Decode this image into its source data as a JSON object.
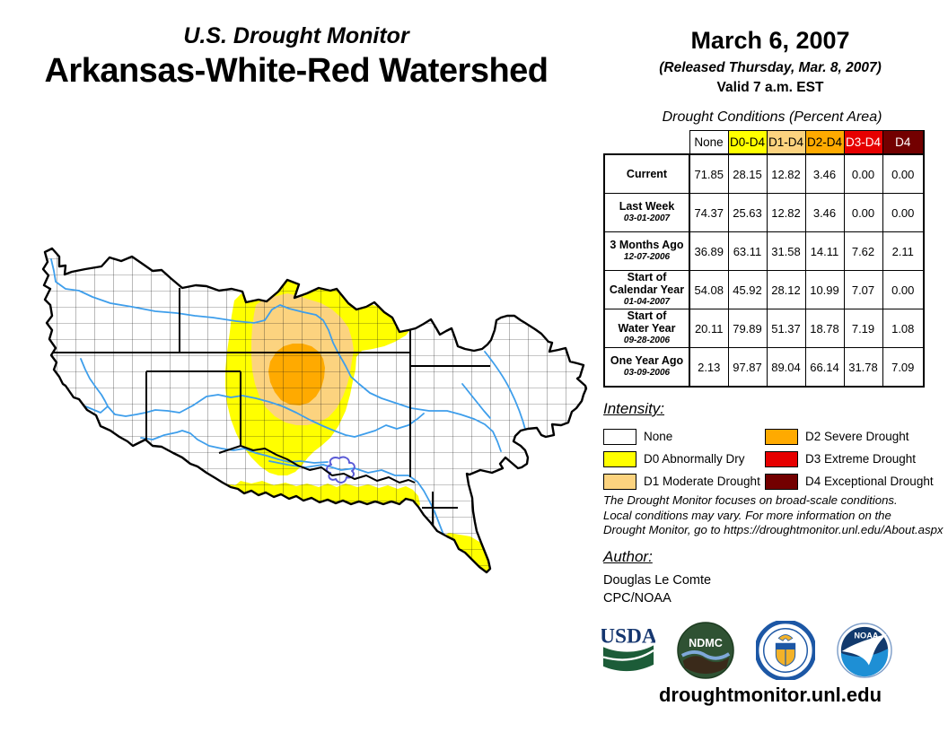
{
  "header": {
    "supertitle": "U.S. Drought Monitor",
    "title": "Arkansas-White-Red Watershed",
    "date": "March 6, 2007",
    "released": "(Released Thursday, Mar. 8, 2007)",
    "valid": "Valid 7 a.m. EST"
  },
  "table": {
    "title": "Drought Conditions (Percent Area)",
    "columns": [
      {
        "label": "None",
        "bg": "#FFFFFF",
        "fg": "#000000"
      },
      {
        "label": "D0-D4",
        "bg": "#FFFF00",
        "fg": "#000000"
      },
      {
        "label": "D1-D4",
        "bg": "#FCD37F",
        "fg": "#000000"
      },
      {
        "label": "D2-D4",
        "bg": "#FFAA00",
        "fg": "#000000"
      },
      {
        "label": "D3-D4",
        "bg": "#E60000",
        "fg": "#FFFFFF"
      },
      {
        "label": "D4",
        "bg": "#730000",
        "fg": "#FFFFFF"
      }
    ],
    "rows": [
      {
        "label": "Current",
        "sublabel": "",
        "values": [
          "71.85",
          "28.15",
          "12.82",
          "3.46",
          "0.00",
          "0.00"
        ]
      },
      {
        "label": "Last Week",
        "sublabel": "03-01-2007",
        "values": [
          "74.37",
          "25.63",
          "12.82",
          "3.46",
          "0.00",
          "0.00"
        ]
      },
      {
        "label": "3 Months Ago",
        "sublabel": "12-07-2006",
        "values": [
          "36.89",
          "63.11",
          "31.58",
          "14.11",
          "7.62",
          "2.11"
        ]
      },
      {
        "label": "Start of\nCalendar Year",
        "sublabel": "01-04-2007",
        "values": [
          "54.08",
          "45.92",
          "28.12",
          "10.99",
          "7.07",
          "0.00"
        ]
      },
      {
        "label": "Start of\nWater Year",
        "sublabel": "09-28-2006",
        "values": [
          "20.11",
          "79.89",
          "51.37",
          "18.78",
          "7.19",
          "1.08"
        ]
      },
      {
        "label": "One Year Ago",
        "sublabel": "03-09-2006",
        "values": [
          "2.13",
          "97.87",
          "89.04",
          "66.14",
          "31.78",
          "7.09"
        ]
      }
    ]
  },
  "legend": {
    "title": "Intensity:",
    "items": [
      {
        "label": "None",
        "color": "#FFFFFF"
      },
      {
        "label": "D0 Abnormally Dry",
        "color": "#FFFF00"
      },
      {
        "label": "D1 Moderate Drought",
        "color": "#FCD37F"
      },
      {
        "label": "D2 Severe Drought",
        "color": "#FFAA00"
      },
      {
        "label": "D3 Extreme Drought",
        "color": "#E60000"
      },
      {
        "label": "D4 Exceptional Drought",
        "color": "#730000"
      }
    ]
  },
  "notes": [
    "The Drought Monitor focuses on broad-scale conditions.",
    "Local conditions may vary. For more information on the",
    "Drought Monitor, go to https://droughtmonitor.unl.edu/About.aspx"
  ],
  "author": {
    "heading": "Author:",
    "name": "Douglas Le Comte",
    "org": "CPC/NOAA"
  },
  "footer": {
    "url": "droughtmonitor.unl.edu"
  },
  "logos": {
    "usda": {
      "text": "USDA"
    },
    "ndmc": {
      "text": "NDMC"
    },
    "doc": {
      "label": "U.S. Department of Commerce seal"
    },
    "noaa": {
      "text": "NOAA"
    }
  },
  "colors": {
    "none": "#FFFFFF",
    "d0": "#FFFF00",
    "d1": "#FCD37F",
    "d2": "#FFAA00",
    "d3": "#E60000",
    "d4": "#730000"
  },
  "map": {
    "region": "Arkansas-White-Red Watershed",
    "features": {
      "river": "#3E9EEB",
      "lake": "#5B5BD6",
      "boundary": "#000000"
    },
    "drought_areas": [
      {
        "code": "D0",
        "label": "Abnormally Dry",
        "location": "large central area (south-central Kansas into Oklahoma), strip along the Red River on the southern border, and the southeast tail tip"
      },
      {
        "code": "D1",
        "label": "Moderate Drought",
        "location": "south-central Kansas / north-central Oklahoma inside the D0 area"
      },
      {
        "code": "D2",
        "label": "Severe Drought",
        "location": "core on the Kansas-Oklahoma border"
      }
    ]
  }
}
